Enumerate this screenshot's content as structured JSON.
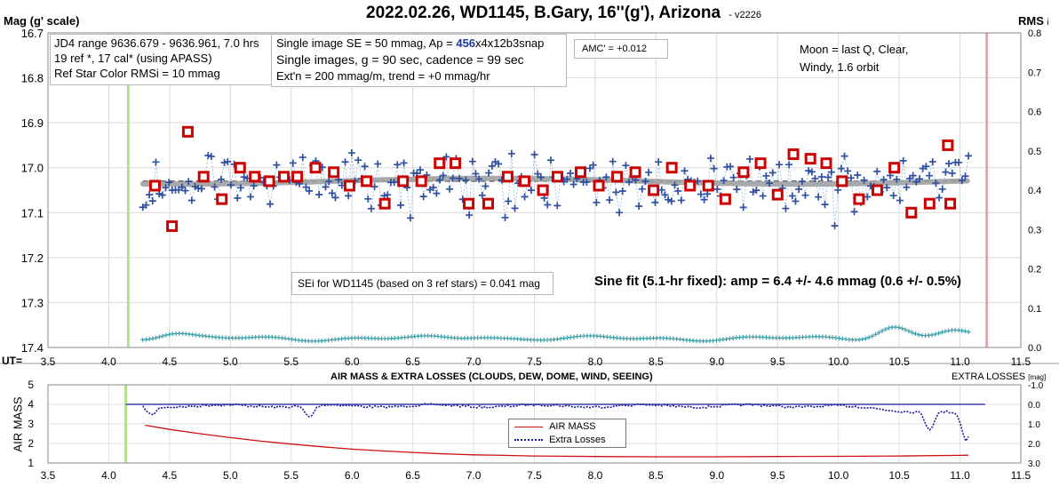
{
  "title": "2022.02.26, WD1145, B.Gary, 16''(g'), Arizona",
  "version": "- v2226",
  "top_chart": {
    "left_axis_title": "Mag (g' scale)",
    "right_axis_title": "RMS",
    "right_axis_suffix": "i",
    "x_axis_prefix": "UT=",
    "x_ticks": [
      "3.5",
      "4.0",
      "4.5",
      "5.0",
      "5.5",
      "6.0",
      "6.5",
      "7.0",
      "7.5",
      "8.0",
      "8.5",
      "9.0",
      "9.5",
      "10.0",
      "10.5",
      "11.0",
      "11.5"
    ],
    "y_ticks": [
      "16.7",
      "16.8",
      "16.9",
      "17.0",
      "17.1",
      "17.2",
      "17.3",
      "17.4"
    ],
    "rms_ticks": [
      "0.8",
      "0.7",
      "0.6",
      "0.5",
      "0.4",
      "0.3",
      "0.2",
      "0.1",
      "0.0"
    ]
  },
  "info_boxes": {
    "box1": [
      "JD4 range 9636.679 - 9636.961, 7.0 hrs",
      "19 ref *, 17 cal* (using APASS)",
      "Ref Star Color RMSi = 10 mmag"
    ],
    "box2_line1_pre": "Single image SE = 50 mmag, Ap = ",
    "box2_line1_ap": "456",
    "box2_line1_post": "x4x12b3snap",
    "box2_line2": "Single images, g = 90 sec, cadence = 99 sec",
    "box2_line3": "Ext'n = 200 mmag/m, trend = +0 mmag/hr",
    "amc": "AMC' = +0.012",
    "moon": [
      "Moon = last Q, Clear,",
      "Windy, 1.6 orbit"
    ],
    "sei": "SEi for WD1145 (based on 3 ref stars) = 0.041 mag",
    "sine_fit": "Sine fit (5.1-hr fixed): amp = 6.4 +/- 4.6 mmag (0.6 +/- 0.5%)"
  },
  "bottom_chart": {
    "title": "AIR MASS & EXTRA LOSSES (CLOUDS, DEW, DOME, WIND, SEEING)",
    "left_axis_title": "AIR MASS",
    "right_axis_title": "EXTRA LOSSES",
    "right_axis_unit": "[mag]",
    "y_ticks": [
      "5",
      "4",
      "3",
      "2",
      "1"
    ],
    "right_ticks": [
      "-1.0",
      "0.0",
      "1.0",
      "2.0",
      "3.0"
    ],
    "x_ticks": [
      "3.5",
      "4.0",
      "4.5",
      "5.0",
      "5.5",
      "6.0",
      "6.5",
      "7.0",
      "7.5",
      "8.0",
      "8.5",
      "9.0",
      "9.5",
      "10.0",
      "10.5",
      "11.0",
      "11.5"
    ],
    "legend": [
      "AIR MASS",
      "Extra Losses"
    ]
  },
  "colors": {
    "single_points": "#2f4fa0",
    "binned_points": "#cc0000",
    "rms_series": "#3fa0a8",
    "model": "#a0a0a0",
    "air_mass": "#cc1111",
    "extra_losses": "#1a1a9c",
    "ap_highlight": "#1f3a9c",
    "start_line": "#b6df8a",
    "end_line": "#f0a0a8"
  },
  "chart_data": {
    "type": "scatter",
    "x_label": "UT",
    "xlim": [
      3.5,
      11.5
    ],
    "ylim": [
      17.4,
      16.7
    ],
    "rms_ylim": [
      0.0,
      0.8
    ],
    "observation_start": 4.16,
    "observation_end": 11.22,
    "mean_level": 17.03,
    "sine_period_hr": 5.1,
    "sine_amp_mag": 0.0064,
    "binned": {
      "name": "binned",
      "x": [
        4.38,
        4.52,
        4.65,
        4.78,
        4.93,
        5.08,
        5.2,
        5.32,
        5.44,
        5.55,
        5.7,
        5.85,
        5.98,
        6.12,
        6.27,
        6.42,
        6.57,
        6.72,
        6.85,
        6.96,
        7.12,
        7.28,
        7.42,
        7.57,
        7.69,
        7.88,
        8.03,
        8.18,
        8.33,
        8.48,
        8.63,
        8.78,
        8.93,
        9.07,
        9.22,
        9.36,
        9.5,
        9.63,
        9.77,
        9.9,
        10.03,
        10.17,
        10.32,
        10.46,
        10.6,
        10.75,
        10.9
      ],
      "y": [
        17.04,
        17.13,
        16.92,
        17.02,
        17.07,
        17.0,
        17.02,
        17.03,
        17.02,
        17.02,
        17.0,
        17.01,
        17.04,
        17.03,
        17.08,
        17.03,
        17.03,
        16.99,
        16.99,
        17.08,
        17.08,
        17.02,
        17.03,
        17.05,
        17.02,
        17.01,
        17.04,
        17.02,
        17.01,
        17.05,
        17.0,
        17.04,
        17.04,
        17.07,
        17.01,
        16.99,
        17.06,
        16.97,
        16.98,
        16.99,
        17.03,
        17.07,
        17.05,
        17.0,
        17.1,
        17.08,
        16.95
      ],
      "tail": [
        [
          10.92,
          17.08
        ]
      ]
    },
    "singles_seed": 13,
    "singles_count": 254,
    "singles_x_range": [
      4.28,
      11.07
    ],
    "rms": {
      "name": "RMS",
      "x_range": [
        4.28,
        11.07
      ],
      "base": 0.023,
      "bumps": [
        [
          4.52,
          0.013
        ],
        [
          7.05,
          0.006
        ],
        [
          10.45,
          0.03
        ],
        [
          10.93,
          0.02
        ]
      ]
    },
    "air_mass": {
      "name": "AIR MASS",
      "x": [
        4.3,
        4.5,
        4.75,
        5.0,
        5.25,
        5.5,
        5.75,
        6.0,
        6.25,
        6.5,
        6.75,
        7.0,
        7.25,
        7.5,
        8.0,
        8.5,
        9.0,
        9.5,
        10.0,
        10.5,
        11.0,
        11.07
      ],
      "y": [
        2.93,
        2.72,
        2.5,
        2.3,
        2.12,
        1.97,
        1.83,
        1.71,
        1.62,
        1.54,
        1.47,
        1.42,
        1.39,
        1.36,
        1.33,
        1.32,
        1.32,
        1.33,
        1.34,
        1.36,
        1.39,
        1.4
      ]
    },
    "extra_losses": {
      "name": "Extra Losses",
      "x_range": [
        4.28,
        11.07
      ],
      "ylim": [
        -1.0,
        3.0
      ],
      "dips": [
        [
          4.35,
          0.45
        ],
        [
          5.65,
          0.6
        ],
        [
          10.75,
          0.9
        ],
        [
          11.05,
          1.4
        ]
      ]
    }
  }
}
